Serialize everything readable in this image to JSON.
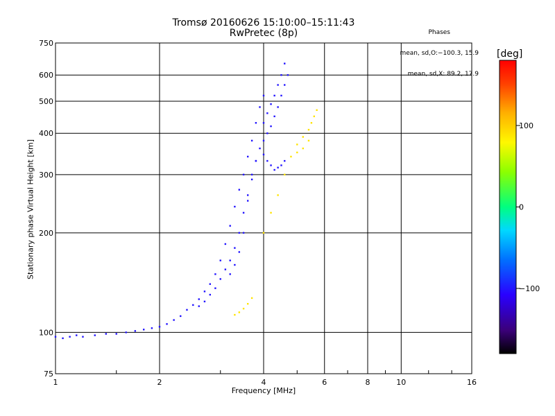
{
  "header": {
    "title_line1": "Tromsø 20160626 15:10:00–15:11:43",
    "title_line2": "RwPretec (8p)",
    "phases_title": "Phases",
    "phases_line1": "mean, sd,O:−100.3, 15.9",
    "phases_line2": "mean, sd,X: 89.2, 17.9"
  },
  "axes": {
    "xlabel": "Frequency [MHz]",
    "ylabel": "Stationary phase Virtual Height [km]"
  },
  "colorbar": {
    "unit": "[deg]",
    "range": [
      -180,
      180
    ],
    "ticks": [
      "100",
      "0",
      "−100"
    ],
    "tick_values": [
      100,
      0,
      -100
    ]
  },
  "chart_data": {
    "type": "scatter",
    "title": "Tromsø 20160626 15:10:00–15:11:43\nRwPretec (8p)",
    "xlabel": "Frequency [MHz]",
    "ylabel": "Stationary phase Virtual Height [km]",
    "x_scale": "log",
    "y_scale": "log",
    "xlim": [
      1,
      16
    ],
    "ylim": [
      75,
      750
    ],
    "x_ticks": [
      1,
      2,
      4,
      6,
      8,
      10,
      16
    ],
    "x_tick_labels": [
      "1",
      "2",
      "4",
      "6",
      "8",
      "10",
      "16"
    ],
    "y_ticks": [
      75,
      100,
      200,
      300,
      400,
      500,
      600,
      750
    ],
    "y_tick_labels": [
      "75",
      "100",
      "200",
      "300",
      "400",
      "500",
      "600",
      "750"
    ],
    "grid": true,
    "color_encoding": "phase [deg], -180 to 180",
    "series": [
      {
        "name": "O",
        "color_phase_deg": -100.3,
        "points": [
          [
            1.0,
            97
          ],
          [
            1.05,
            96
          ],
          [
            1.1,
            97
          ],
          [
            1.15,
            98
          ],
          [
            1.2,
            97
          ],
          [
            1.3,
            98
          ],
          [
            1.4,
            99
          ],
          [
            1.5,
            99
          ],
          [
            1.6,
            100
          ],
          [
            1.7,
            101
          ],
          [
            1.8,
            102
          ],
          [
            1.9,
            103
          ],
          [
            2.0,
            104
          ],
          [
            2.1,
            106
          ],
          [
            2.2,
            109
          ],
          [
            2.3,
            112
          ],
          [
            2.4,
            117
          ],
          [
            2.5,
            121
          ],
          [
            2.6,
            126
          ],
          [
            2.7,
            133
          ],
          [
            2.8,
            140
          ],
          [
            2.9,
            150
          ],
          [
            3.0,
            165
          ],
          [
            3.1,
            185
          ],
          [
            3.2,
            210
          ],
          [
            3.3,
            240
          ],
          [
            3.4,
            270
          ],
          [
            3.5,
            300
          ],
          [
            3.6,
            340
          ],
          [
            3.7,
            380
          ],
          [
            3.8,
            430
          ],
          [
            3.9,
            480
          ],
          [
            4.0,
            520
          ],
          [
            2.6,
            120
          ],
          [
            2.7,
            124
          ],
          [
            2.8,
            130
          ],
          [
            2.9,
            136
          ],
          [
            3.0,
            145
          ],
          [
            3.1,
            155
          ],
          [
            3.2,
            165
          ],
          [
            3.3,
            180
          ],
          [
            3.4,
            200
          ],
          [
            3.5,
            230
          ],
          [
            3.6,
            260
          ],
          [
            3.7,
            290
          ],
          [
            3.8,
            330
          ],
          [
            3.2,
            150
          ],
          [
            3.3,
            160
          ],
          [
            3.4,
            175
          ],
          [
            3.5,
            200
          ],
          [
            3.6,
            250
          ],
          [
            3.7,
            300
          ],
          [
            3.8,
            330
          ],
          [
            3.9,
            360
          ],
          [
            4.0,
            380
          ],
          [
            4.1,
            400
          ],
          [
            4.2,
            420
          ],
          [
            4.3,
            450
          ],
          [
            4.4,
            480
          ],
          [
            4.5,
            520
          ],
          [
            4.6,
            560
          ],
          [
            4.7,
            600
          ],
          [
            4.0,
            430
          ],
          [
            4.1,
            460
          ],
          [
            4.2,
            490
          ],
          [
            4.3,
            520
          ],
          [
            4.4,
            560
          ],
          [
            4.5,
            600
          ],
          [
            4.6,
            650
          ],
          [
            4.6,
            330
          ],
          [
            4.5,
            320
          ],
          [
            4.4,
            315
          ],
          [
            4.3,
            310
          ],
          [
            4.2,
            320
          ],
          [
            4.1,
            330
          ],
          [
            4.0,
            345
          ]
        ]
      },
      {
        "name": "X",
        "color_phase_deg": 89.2,
        "points": [
          [
            3.3,
            113
          ],
          [
            3.4,
            115
          ],
          [
            3.5,
            118
          ],
          [
            3.6,
            122
          ],
          [
            3.7,
            127
          ],
          [
            4.0,
            200
          ],
          [
            4.2,
            230
          ],
          [
            4.4,
            260
          ],
          [
            4.6,
            300
          ],
          [
            4.8,
            340
          ],
          [
            5.0,
            370
          ],
          [
            5.2,
            390
          ],
          [
            5.4,
            410
          ],
          [
            5.5,
            430
          ],
          [
            5.6,
            450
          ],
          [
            5.7,
            470
          ],
          [
            5.0,
            350
          ],
          [
            5.2,
            360
          ],
          [
            5.4,
            380
          ]
        ]
      }
    ]
  }
}
